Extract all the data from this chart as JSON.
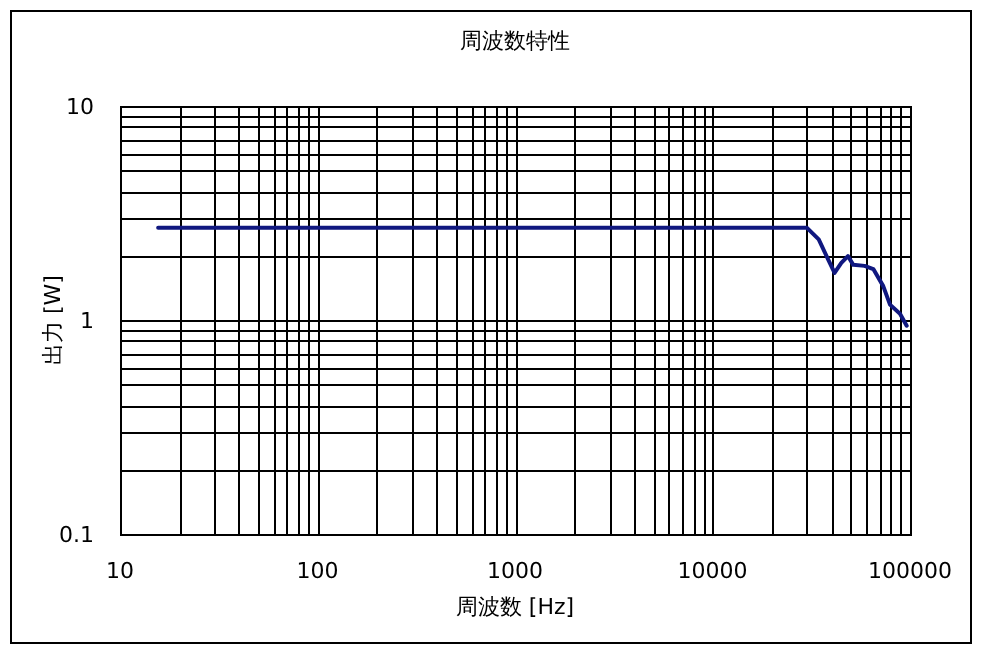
{
  "chart_data": {
    "type": "line",
    "title": "周波数特性",
    "xlabel": "周波数 [Hz]",
    "ylabel": "出力 [W]",
    "x": [
      15.6,
      20000,
      30000,
      34500,
      37800,
      41500,
      44900,
      48500,
      51600,
      58900,
      65200,
      73200,
      79200,
      89000,
      96200
    ],
    "series": [
      {
        "color": "#101880",
        "values": [
          2.7,
          2.7,
          2.7,
          2.38,
          1.99,
          1.66,
          1.85,
          1.99,
          1.81,
          1.79,
          1.73,
          1.44,
          1.18,
          1.07,
          0.94
        ]
      }
    ],
    "xlim": [
      10,
      100000
    ],
    "ylim": [
      0.1,
      10
    ],
    "xticks": [
      10,
      100,
      1000,
      10000,
      100000
    ],
    "yticks": [
      0.1,
      1,
      10
    ],
    "log": "xy",
    "grid": true
  }
}
